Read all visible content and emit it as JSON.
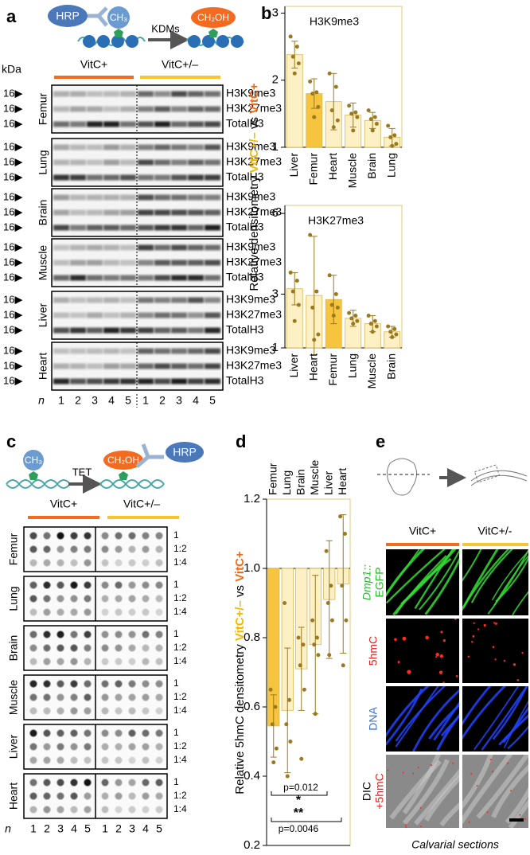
{
  "panel_labels": [
    "a",
    "b",
    "c",
    "d",
    "e"
  ],
  "panel_a": {
    "enzyme": "HRP",
    "methyl": "CH₃",
    "demethylase": "KDMs",
    "hydroxy": "CH₂OH",
    "unit": "kDa",
    "groups": [
      "VitC+",
      "VitC+/–"
    ],
    "group_colors": [
      "#f26b21",
      "#f7c531"
    ],
    "tissues": [
      "Femur",
      "Lung",
      "Brain",
      "Muscle",
      "Liver",
      "Heart"
    ],
    "marker": "16▶",
    "bands": [
      "H3K9me3",
      "H3K27me3",
      "TotalH3"
    ],
    "n": "n",
    "lanes": [
      "1",
      "2",
      "3",
      "4",
      "5"
    ]
  },
  "panel_c": {
    "methyl": "CH₃",
    "enzyme_tet": "TET",
    "hydroxy": "CH₂OH",
    "enzyme": "HRP",
    "groups": [
      "VitC+",
      "VitC+/–"
    ],
    "tissues": [
      "Femur",
      "Lung",
      "Brain",
      "Muscle",
      "Liver",
      "Heart"
    ],
    "dilutions": [
      "1",
      "1:2",
      "1:4"
    ],
    "n": "n",
    "lanes": [
      "1",
      "2",
      "3",
      "4",
      "5"
    ]
  },
  "panel_e": {
    "groups": [
      "VitC+",
      "VitC+/-"
    ],
    "channels": [
      [
        "Dmp1::",
        "EGFP"
      ],
      [
        "5hmC"
      ],
      [
        "DNA"
      ],
      [
        "DIC",
        "+5hmC"
      ]
    ],
    "caption": "Calvarial sections"
  },
  "chart_data": [
    {
      "type": "bar",
      "title": "H3K9me3",
      "categories": [
        "Liver",
        "Femur",
        "Heart",
        "Muscle",
        "Brain",
        "Lung"
      ],
      "values": [
        2.38,
        1.8,
        1.68,
        1.48,
        1.4,
        1.15
      ],
      "errors": [
        0.2,
        0.22,
        0.42,
        0.18,
        0.12,
        0.13
      ],
      "points": [
        [
          2.65,
          2.5,
          2.35,
          2.25,
          2.1
        ],
        [
          1.98,
          1.82,
          1.8,
          1.6,
          1.45
        ],
        [
          2.1,
          1.9,
          1.55,
          1.4,
          1.3
        ],
        [
          1.62,
          1.52,
          1.5,
          1.45,
          1.25
        ],
        [
          1.55,
          1.45,
          1.42,
          1.35,
          1.25
        ],
        [
          1.32,
          1.18,
          1.15,
          1.05,
          1.02
        ]
      ],
      "bar_colors": [
        "#fcf0c4",
        "#f6c53d",
        "#fcf0c4",
        "#fcf0c4",
        "#fcf0c4",
        "#fcf0c4"
      ],
      "ylim": [
        1,
        3.1
      ],
      "yticks": [
        1,
        2,
        3
      ],
      "ylabel": [
        {
          "text": "Relative densitometry ",
          "color": "#000000"
        },
        {
          "text": "VitC+/–",
          "color": "#f5b800"
        },
        {
          "text": " vs ",
          "color": "#000000"
        },
        {
          "text": "VitC+",
          "color": "#f06a1c"
        }
      ]
    },
    {
      "type": "bar",
      "title": "H3K27me3",
      "categories": [
        "Liver",
        "Heart",
        "Femur",
        "Lung",
        "Muscle",
        "Brain"
      ],
      "values": [
        3.2,
        2.95,
        2.8,
        2.1,
        1.9,
        1.6
      ],
      "errors": [
        0.6,
        2.2,
        0.9,
        0.3,
        0.3,
        0.2
      ],
      "points": [
        [
          3.8,
          3.5,
          3.1,
          2.6,
          2.0
        ],
        [
          5.2,
          3.1,
          2.5,
          1.5,
          1.3
        ],
        [
          3.7,
          3.0,
          2.6,
          2.5,
          2.2
        ],
        [
          2.3,
          2.2,
          2.1,
          2.0,
          1.9
        ],
        [
          2.2,
          2.0,
          1.9,
          1.8,
          1.6
        ],
        [
          1.8,
          1.7,
          1.6,
          1.5,
          1.4
        ]
      ],
      "bar_colors": [
        "#fcf0c4",
        "#fcf0c4",
        "#f6c53d",
        "#fcf0c4",
        "#fcf0c4",
        "#fcf0c4"
      ],
      "ylim": [
        1,
        6.3
      ],
      "yticks": [
        1,
        3,
        6
      ]
    },
    {
      "type": "bar",
      "categories": [
        "Femur",
        "Lung",
        "Brain",
        "Muscle",
        "Liver",
        "Heart"
      ],
      "values": [
        0.545,
        0.59,
        0.71,
        0.78,
        0.91,
        0.955
      ],
      "errors": [
        0.09,
        0.18,
        0.12,
        0.2,
        0.17,
        0.2
      ],
      "points": [
        [
          0.65,
          0.6,
          0.55,
          0.48,
          0.44
        ],
        [
          0.9,
          0.62,
          0.55,
          0.5,
          0.4
        ],
        [
          0.8,
          0.78,
          0.72,
          0.65,
          0.45
        ],
        [
          0.85,
          0.8,
          0.78,
          0.75,
          0.58
        ],
        [
          1.05,
          0.95,
          0.9,
          0.85,
          0.75
        ],
        [
          1.15,
          1.1,
          0.95,
          0.85,
          0.72
        ]
      ],
      "bar_colors": [
        "#f6c53d",
        "#fcf0c4",
        "#fcf0c4",
        "#fcf0c4",
        "#fcf0c4",
        "#fcf0c4"
      ],
      "baseline": 1,
      "ylim": [
        0.2,
        1.2
      ],
      "yticks": [
        0.2,
        0.4,
        0.6,
        0.8,
        {
          "value": 1,
          "label": "1.0"
        },
        1.2
      ],
      "ylabel": [
        {
          "text": "Relative 5hmC densitometry ",
          "color": "#000000"
        },
        {
          "text": "VitC+/–",
          "color": "#f5b800"
        },
        {
          "text": " vs ",
          "color": "#000000"
        },
        {
          "text": "VitC+",
          "color": "#f06a1c"
        }
      ],
      "annotations": [
        "p=0.012",
        "*",
        "**",
        "p=0.0046"
      ]
    }
  ]
}
